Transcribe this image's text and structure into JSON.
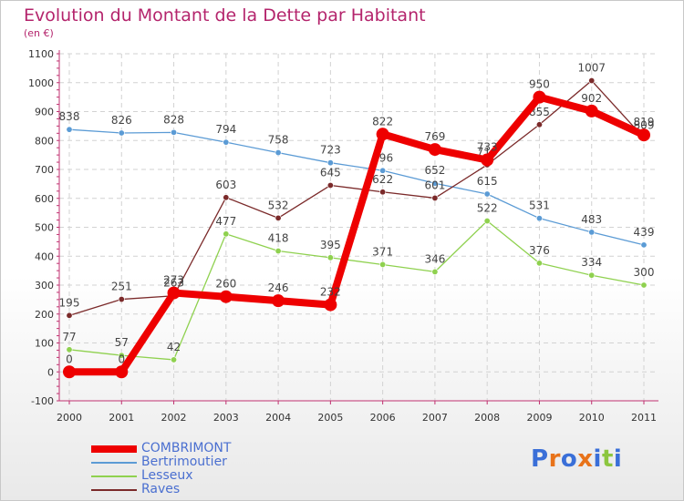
{
  "header": {
    "title": "Evolution du Montant de la Dette par Habitant",
    "subtitle": "(en €)"
  },
  "logo": {
    "text": "Proxiti",
    "letter_colors": [
      "#3a6fd8",
      "#e8731a",
      "#3a6fd8",
      "#e8731a",
      "#3a6fd8",
      "#8cc63f",
      "#3a6fd8"
    ]
  },
  "chart_data": {
    "type": "line",
    "x": [
      "2000",
      "2001",
      "2002",
      "2003",
      "2004",
      "2005",
      "2006",
      "2007",
      "2008",
      "2009",
      "2010",
      "2011"
    ],
    "ylim": [
      -100,
      1100
    ],
    "yticks": [
      -100,
      0,
      100,
      200,
      300,
      400,
      500,
      600,
      700,
      800,
      900,
      1000,
      1100
    ],
    "grid": true,
    "legend_position": "bottom-left",
    "series": [
      {
        "name": "COMBRIMONT",
        "color": "#ee0000",
        "emphasis": true,
        "values": [
          0,
          0,
          273,
          260,
          246,
          232,
          822,
          769,
          733,
          950,
          902,
          819
        ]
      },
      {
        "name": "Bertrimoutier",
        "color": "#5b9bd5",
        "emphasis": false,
        "values": [
          838,
          826,
          828,
          794,
          758,
          723,
          696,
          652,
          615,
          531,
          483,
          439
        ]
      },
      {
        "name": "Lesseux",
        "color": "#8fd14f",
        "emphasis": false,
        "values": [
          77,
          57,
          42,
          477,
          418,
          395,
          371,
          346,
          522,
          376,
          334,
          300
        ]
      },
      {
        "name": "Raves",
        "color": "#7b2a2a",
        "emphasis": false,
        "values": [
          195,
          251,
          263,
          603,
          532,
          645,
          622,
          601,
          716,
          855,
          1007,
          809
        ]
      }
    ]
  }
}
